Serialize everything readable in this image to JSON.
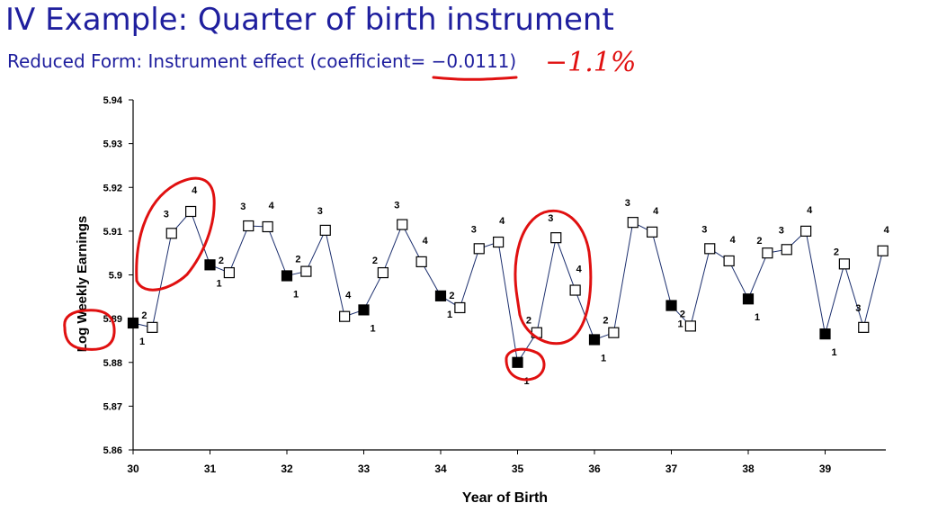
{
  "slide": {
    "title": "IV Example: Quarter of birth instrument",
    "subtitle": "Reduced Form: Instrument effect (coefficient= −0.0111)",
    "handwritten_annotation": "−1.1%",
    "annotation_color": "#e01010",
    "title_color": "#1f1f9e"
  },
  "chart_data": {
    "type": "line",
    "title": "",
    "xlabel": "Year of Birth",
    "ylabel": "Log Weekly Earnings",
    "xlim": [
      30,
      39.8
    ],
    "ylim": [
      5.86,
      5.94
    ],
    "xticks": [
      "30",
      "31",
      "32",
      "33",
      "34",
      "35",
      "36",
      "37",
      "38",
      "39"
    ],
    "yticks": [
      "5.86",
      "5.87",
      "5.88",
      "5.89",
      "5.9",
      "5.91",
      "5.92",
      "5.93",
      "5.94"
    ],
    "grid": false,
    "legend": "none",
    "marker_legend": {
      "filled_square": "quarter 1",
      "open_square": "quarters 2-4"
    },
    "series": [
      {
        "x": [
          30,
          30.25,
          30.5,
          30.75,
          31,
          31.25,
          31.5,
          31.75,
          32,
          32.25,
          32.5,
          32.75,
          33,
          33.25,
          33.5,
          33.75,
          34,
          34.25,
          34.5,
          34.75,
          35,
          35.25,
          35.5,
          35.75,
          36,
          36.25,
          36.5,
          36.75,
          37,
          37.25,
          37.5,
          37.75,
          38,
          38.25,
          38.5,
          38.75,
          39,
          39.25,
          39.5,
          39.75
        ],
        "values": [
          5.889,
          5.888,
          5.9095,
          5.9145,
          5.9023,
          5.9005,
          5.9112,
          5.911,
          5.8998,
          5.9008,
          5.9102,
          5.8905,
          5.892,
          5.9005,
          5.9115,
          5.903,
          5.8952,
          5.8925,
          5.906,
          5.9075,
          5.88,
          5.8868,
          5.9085,
          5.8965,
          5.8852,
          5.8868,
          5.912,
          5.9098,
          5.893,
          5.8883,
          5.906,
          5.9032,
          5.8945,
          5.905,
          5.9058,
          5.91,
          5.8865,
          5.9025,
          5.888,
          5.9055
        ],
        "quarters": [
          "1",
          "2",
          "3",
          "4",
          "1",
          "2",
          "3",
          "4",
          "1",
          "2",
          "3",
          "4",
          "1",
          "2",
          "3",
          "4",
          "1",
          "2",
          "3",
          "4",
          "1",
          "2",
          "3",
          "4",
          "1",
          "2",
          "3",
          "4",
          "1",
          "2",
          "3",
          "4",
          "1",
          "2",
          "3",
          "4",
          "1",
          "2",
          "3",
          "4"
        ]
      }
    ]
  }
}
